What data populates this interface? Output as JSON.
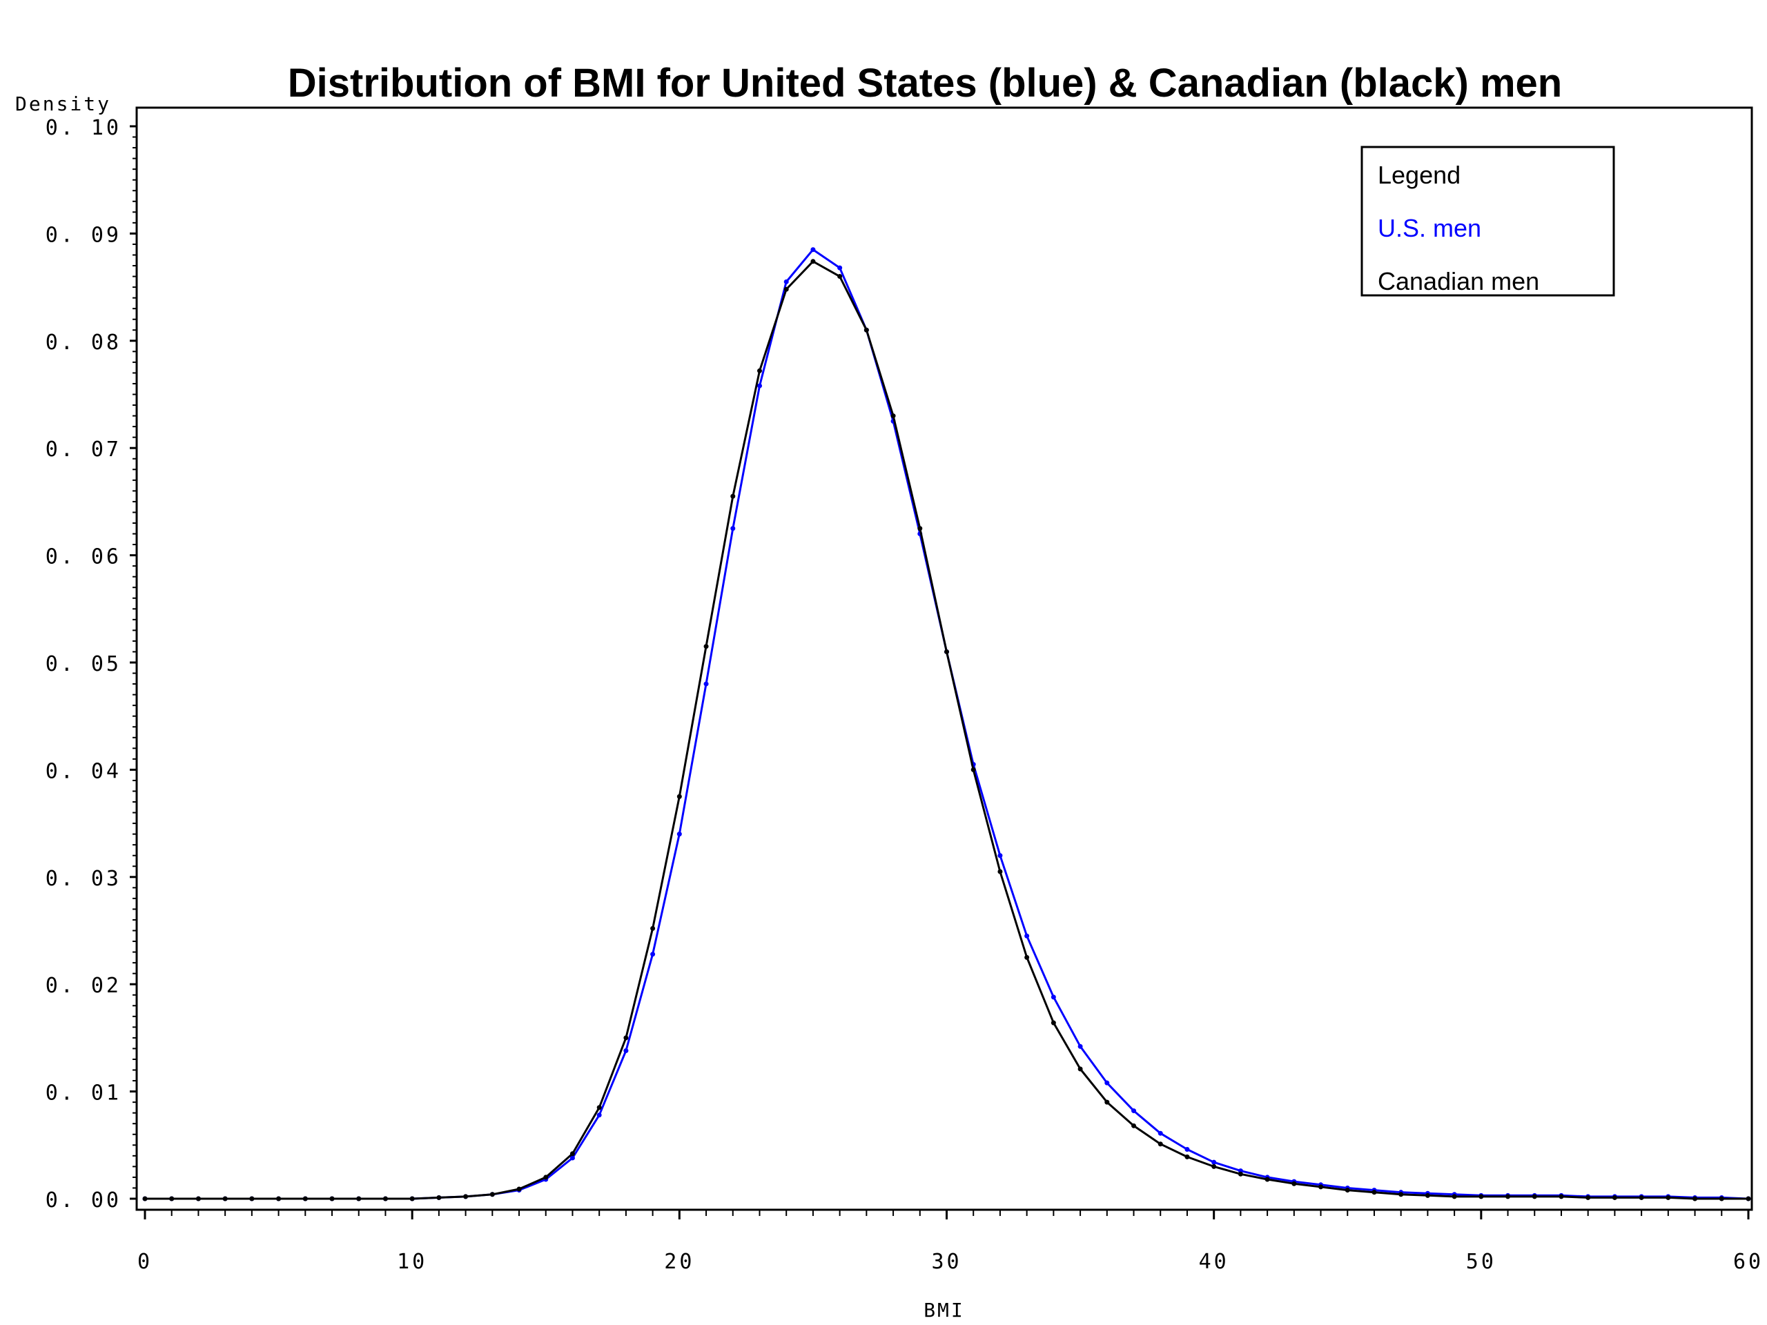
{
  "chart_data": {
    "type": "line",
    "title": "Distribution of BMI for United States (blue) & Canadian (black) men",
    "xlabel": "BMI",
    "ylabel": "Density",
    "xlim": [
      0,
      60
    ],
    "ylim": [
      0,
      0.1
    ],
    "x_ticks": [
      "0",
      "10",
      "20",
      "30",
      "40",
      "50",
      "60"
    ],
    "y_ticks": [
      "0. 00",
      "0. 01",
      "0. 02",
      "0. 03",
      "0. 04",
      "0. 05",
      "0. 06",
      "0. 07",
      "0. 08",
      "0. 09",
      "0. 10"
    ],
    "legend": {
      "title": "Legend",
      "placement": "top-right",
      "items": [
        "U.S. men",
        "Canadian men"
      ]
    },
    "series": [
      {
        "name": "U.S. men",
        "color": "#0000ff",
        "x": [
          0,
          1,
          2,
          3,
          4,
          5,
          6,
          7,
          8,
          9,
          10,
          11,
          12,
          13,
          14,
          15,
          16,
          17,
          18,
          19,
          20,
          21,
          22,
          23,
          24,
          25,
          26,
          27,
          28,
          29,
          30,
          31,
          32,
          33,
          34,
          35,
          36,
          37,
          38,
          39,
          40,
          41,
          42,
          43,
          44,
          45,
          46,
          47,
          48,
          49,
          50,
          51,
          52,
          53,
          54,
          55,
          56,
          57,
          58,
          59,
          60
        ],
        "values": [
          0,
          0,
          0,
          0,
          0,
          0,
          0,
          0,
          0,
          0,
          0,
          0.0001,
          0.0002,
          0.0004,
          0.0008,
          0.0018,
          0.0038,
          0.0078,
          0.0138,
          0.0228,
          0.034,
          0.048,
          0.0625,
          0.0758,
          0.0855,
          0.0885,
          0.0868,
          0.081,
          0.0725,
          0.062,
          0.051,
          0.0405,
          0.032,
          0.0245,
          0.0188,
          0.0142,
          0.0108,
          0.0082,
          0.0061,
          0.0046,
          0.0034,
          0.0026,
          0.002,
          0.0016,
          0.0013,
          0.001,
          0.0008,
          0.0006,
          0.0005,
          0.0004,
          0.0003,
          0.0003,
          0.0003,
          0.0003,
          0.0002,
          0.0002,
          0.0002,
          0.0002,
          0.0001,
          0.0001,
          0
        ]
      },
      {
        "name": "Canadian men",
        "color": "#000000",
        "x": [
          0,
          1,
          2,
          3,
          4,
          5,
          6,
          7,
          8,
          9,
          10,
          11,
          12,
          13,
          14,
          15,
          16,
          17,
          18,
          19,
          20,
          21,
          22,
          23,
          24,
          25,
          26,
          27,
          28,
          29,
          30,
          31,
          32,
          33,
          34,
          35,
          36,
          37,
          38,
          39,
          40,
          41,
          42,
          43,
          44,
          45,
          46,
          47,
          48,
          49,
          50,
          51,
          52,
          53,
          54,
          55,
          56,
          57,
          58,
          59,
          60
        ],
        "values": [
          0,
          0,
          0,
          0,
          0,
          0,
          0,
          0,
          0,
          0,
          0,
          0.0001,
          0.0002,
          0.0004,
          0.0009,
          0.002,
          0.0042,
          0.0085,
          0.015,
          0.0252,
          0.0375,
          0.0515,
          0.0655,
          0.0772,
          0.0848,
          0.0874,
          0.086,
          0.081,
          0.073,
          0.0625,
          0.051,
          0.04,
          0.0305,
          0.0225,
          0.0164,
          0.0121,
          0.009,
          0.0068,
          0.0051,
          0.0039,
          0.003,
          0.0023,
          0.0018,
          0.0014,
          0.0011,
          0.0008,
          0.0006,
          0.0004,
          0.0003,
          0.0002,
          0.0002,
          0.0002,
          0.0002,
          0.0002,
          0.0001,
          0.0001,
          0.0001,
          0.0001,
          0,
          0,
          0
        ]
      }
    ]
  }
}
